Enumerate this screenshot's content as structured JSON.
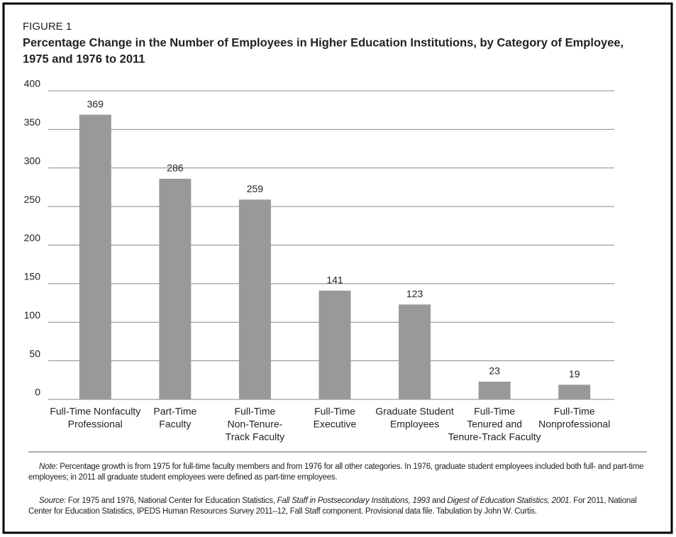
{
  "chart_data": {
    "type": "bar",
    "figure_label": "FIGURE 1",
    "title": "Percentage Change in the Number of Employees in Higher Education Institutions, by Category of Employee,",
    "title_line2": "1975 and 1976 to 2011",
    "categories": [
      [
        "Full-Time Nonfaculty",
        "Professional"
      ],
      [
        "Part-Time",
        "Faculty"
      ],
      [
        "Full-Time",
        "Non-Tenure-",
        "Track Faculty"
      ],
      [
        "Full-Time",
        "Executive"
      ],
      [
        "Graduate Student",
        "Employees"
      ],
      [
        "Full-Time",
        "Tenured and",
        "Tenure-Track Faculty"
      ],
      [
        "Full-Time",
        "Nonprofessional"
      ]
    ],
    "values": [
      369,
      286,
      259,
      141,
      123,
      23,
      19
    ],
    "color": "#999999",
    "ylim": [
      0,
      400
    ],
    "yticks": [
      0,
      50,
      100,
      150,
      200,
      250,
      300,
      350,
      400
    ],
    "grid": true
  },
  "note": {
    "label": "Note:",
    "text": " Percentage growth is from 1975 for full-time faculty members and from 1976 for all other categories. In 1976, graduate student employees included both full- and part-time employees; in 2011 all graduate student employees were defined as part-time employees."
  },
  "source": {
    "label": "Source:",
    "segments": [
      {
        "text": " For 1975 and 1976, National Center for Education Statistics, "
      },
      {
        "text": "Fall Staff in Postsecondary Institutions, 1993",
        "italic": true
      },
      {
        "text": " and "
      },
      {
        "text": "Digest of Education Statistics, 2001",
        "italic": true
      },
      {
        "text": ". For 2011, National Center for Education Statistics, IPEDS Human Resources Survey 2011–12, Fall Staff component. Provisional data file. Tabulation by John W. Curtis."
      }
    ]
  }
}
